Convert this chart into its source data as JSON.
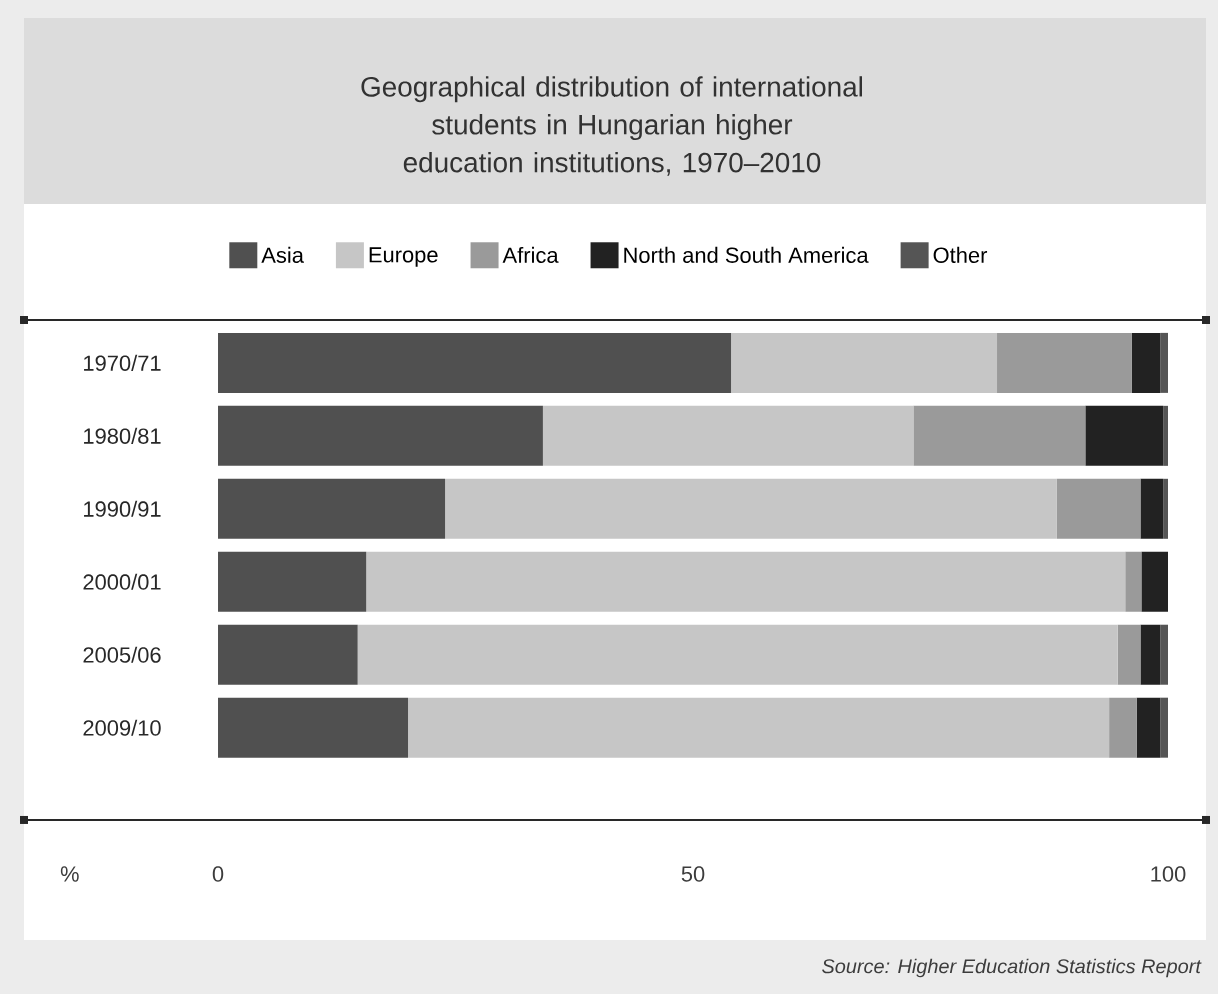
{
  "chart_data": {
    "type": "bar",
    "orientation": "horizontal",
    "stacked": true,
    "title": "Geographical distribution of international students in Hungarian higher education institutions, 1970–2010",
    "xlabel": "%",
    "annotations": [
      "Source: Higher Education Statistics Report"
    ],
    "categories": [
      "1970/71",
      "1980/81",
      "1990/91",
      "2000/01",
      "2005/06",
      "2009/10"
    ],
    "series": [
      {
        "name": "Asia",
        "color": "#505050",
        "values": [
          54,
          34.2,
          23.9,
          15.6,
          14.7,
          20
        ]
      },
      {
        "name": "Europe",
        "color": "#c6c6c6",
        "values": [
          28,
          39,
          64.4,
          79.9,
          80,
          73.8
        ]
      },
      {
        "name": "Africa",
        "color": "#9a9a9a",
        "values": [
          14.2,
          18.1,
          8.8,
          1.7,
          2.4,
          2.9
        ]
      },
      {
        "name": "North and South America",
        "color": "#222222",
        "values": [
          3,
          8.2,
          2.4,
          2.8,
          2.1,
          2.5
        ]
      },
      {
        "name": "Other",
        "color": "#555555",
        "values": [
          0.8,
          0.5,
          0.5,
          0,
          0.8,
          0.8
        ]
      }
    ],
    "xlim": [
      0,
      100
    ],
    "xticks": [
      0,
      50,
      100
    ],
    "grid": false,
    "legend": "top"
  }
}
